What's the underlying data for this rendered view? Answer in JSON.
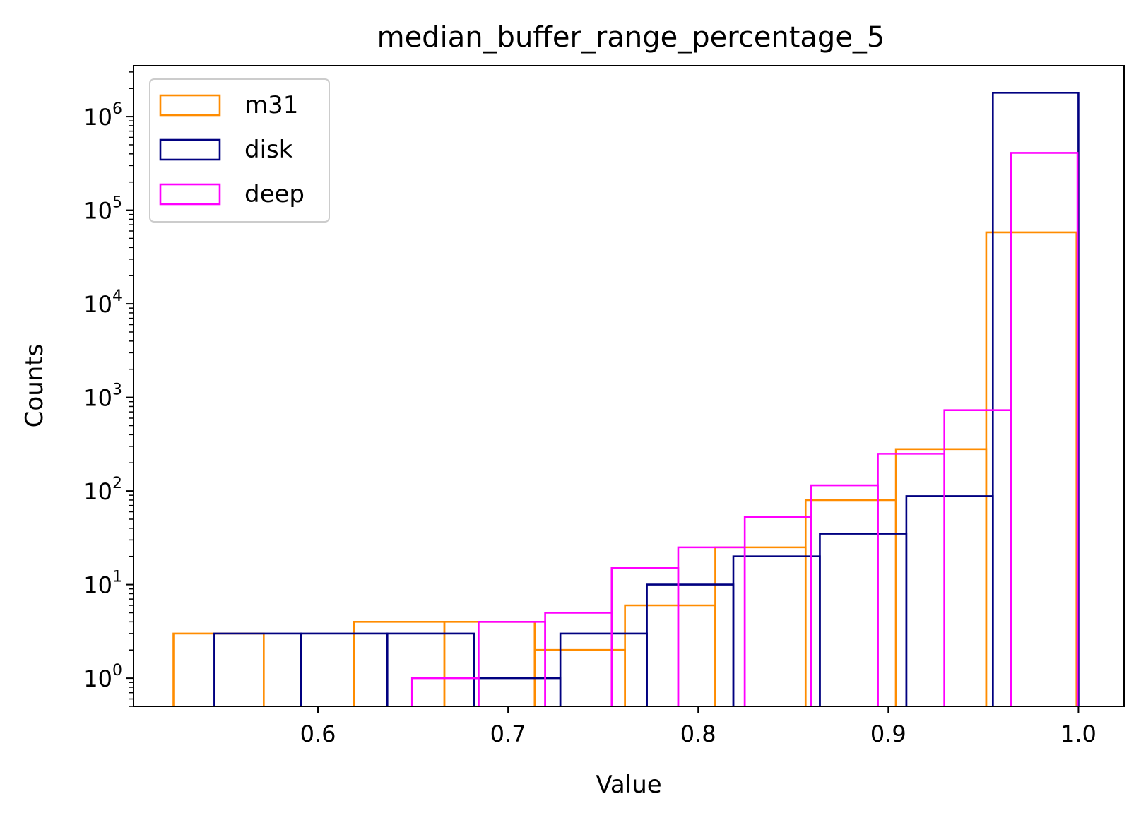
{
  "chart_data": {
    "type": "step-histogram",
    "title": "median_buffer_range_percentage_5",
    "xlabel": "Value",
    "ylabel": "Counts",
    "xlim": [
      0.503,
      1.024
    ],
    "ylim": [
      0.5,
      3500000
    ],
    "yscale": "log",
    "xticks": [
      0.6,
      0.7,
      0.8,
      0.9,
      1.0
    ],
    "xtick_labels": [
      "0.6",
      "0.7",
      "0.8",
      "0.9",
      "1.0"
    ],
    "yticks": [
      1,
      10,
      100,
      1000,
      10000,
      100000,
      1000000
    ],
    "ytick_labels": [
      {
        "base": "10",
        "exp": "0"
      },
      {
        "base": "10",
        "exp": "1"
      },
      {
        "base": "10",
        "exp": "2"
      },
      {
        "base": "10",
        "exp": "3"
      },
      {
        "base": "10",
        "exp": "4"
      },
      {
        "base": "10",
        "exp": "5"
      },
      {
        "base": "10",
        "exp": "6"
      }
    ],
    "grid": false,
    "legend_position": "upper-left",
    "series": [
      {
        "name": "m31",
        "color": "#ff8c00",
        "edges": [
          0.524,
          0.5715,
          0.619,
          0.6665,
          0.714,
          0.7615,
          0.809,
          0.8565,
          0.904,
          0.9515,
          0.999
        ],
        "counts": [
          3,
          0,
          4,
          4,
          2,
          6,
          25,
          80,
          280,
          58000
        ]
      },
      {
        "name": "disk",
        "color": "#000080",
        "edges": [
          0.5455,
          0.591,
          0.6365,
          0.682,
          0.7275,
          0.773,
          0.8185,
          0.864,
          0.9095,
          0.955,
          1.0
        ],
        "counts": [
          3,
          3,
          3,
          1,
          3,
          10,
          20,
          35,
          88,
          1800000
        ]
      },
      {
        "name": "deep",
        "color": "#ff00ff",
        "edges": [
          0.6495,
          0.6845,
          0.7195,
          0.7545,
          0.7895,
          0.8245,
          0.8595,
          0.8945,
          0.9295,
          0.9645,
          0.9995
        ],
        "counts": [
          1,
          4,
          5,
          15,
          25,
          53,
          115,
          250,
          730,
          410000
        ]
      }
    ]
  }
}
